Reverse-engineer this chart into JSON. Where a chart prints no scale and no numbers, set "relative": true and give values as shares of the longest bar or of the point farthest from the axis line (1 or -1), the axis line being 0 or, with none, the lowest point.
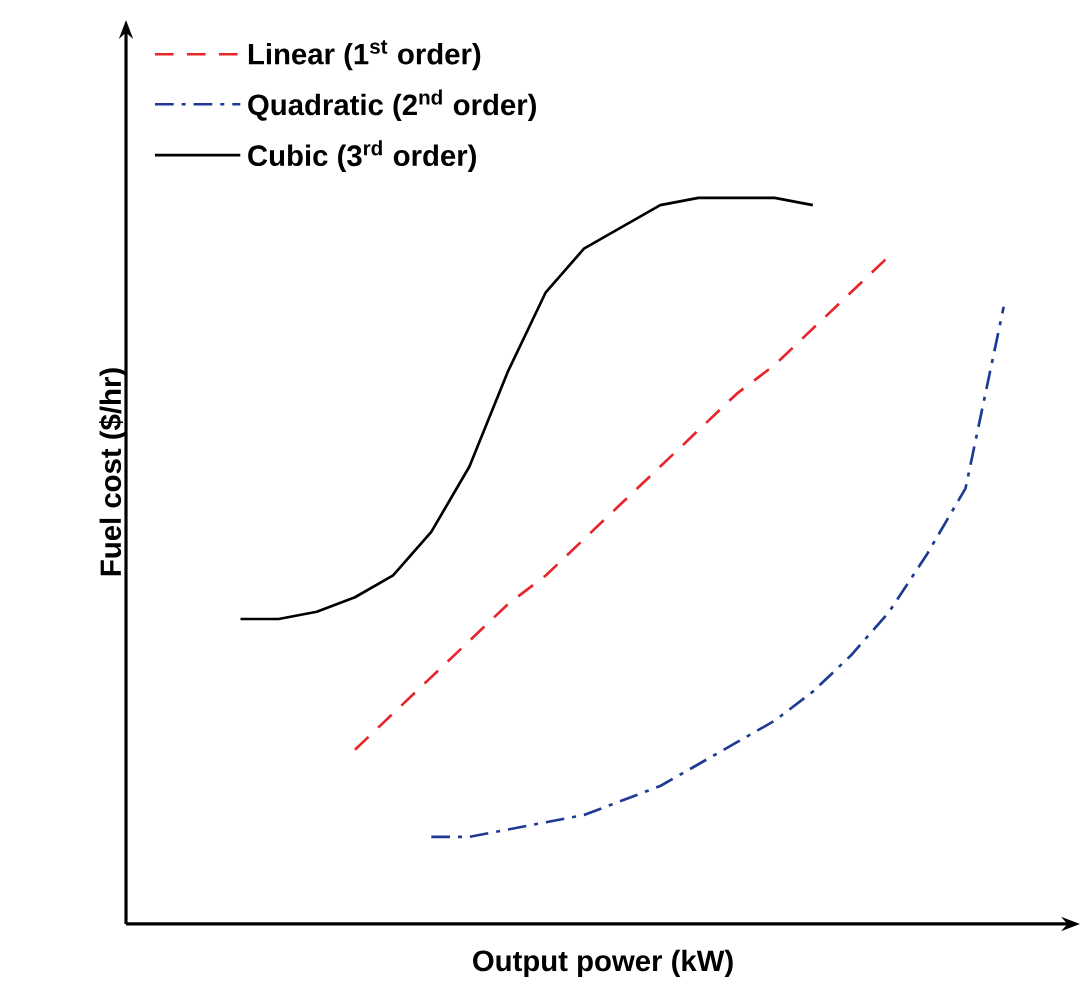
{
  "chart_data": {
    "type": "line",
    "relative": true,
    "xlabel": "Output power (kW)",
    "ylabel": "Fuel cost ($/hr)",
    "categories": [
      null,
      null,
      null,
      null,
      null,
      null,
      null,
      null,
      null,
      null,
      null,
      null,
      null,
      null,
      null,
      null,
      null,
      null,
      null,
      null,
      null
    ],
    "tick_labels": false,
    "legend": "top left",
    "series": [
      {
        "name": "Linear (1$^{st}$ order)",
        "color": "#e8262a",
        "line_style": "dashed",
        "values": [
          null,
          null,
          null,
          0.24,
          0.29,
          0.34,
          0.39,
          0.44,
          0.48,
          0.53,
          0.58,
          0.63,
          0.68,
          0.73,
          0.77,
          0.82,
          0.87,
          0.92,
          null,
          null,
          null
        ]
      },
      {
        "name": "Quadratic (2$^{nd}$ order)",
        "color": "#1f3a93",
        "line_style": "dashdot",
        "values": [
          null,
          null,
          null,
          null,
          null,
          0.12,
          0.12,
          0.13,
          0.14,
          0.15,
          0.17,
          0.19,
          0.22,
          0.25,
          0.28,
          0.32,
          0.37,
          0.43,
          0.51,
          0.6,
          0.85
        ]
      },
      {
        "name": "Cubic (3$^{rd}$ order)",
        "color": "#000000",
        "line_style": "solid",
        "values": [
          0.42,
          0.42,
          0.43,
          0.45,
          0.48,
          0.54,
          0.63,
          0.76,
          0.87,
          0.93,
          0.96,
          0.99,
          1.0,
          1.0,
          1.0,
          0.99,
          null,
          null,
          null,
          null,
          null
        ]
      }
    ]
  }
}
